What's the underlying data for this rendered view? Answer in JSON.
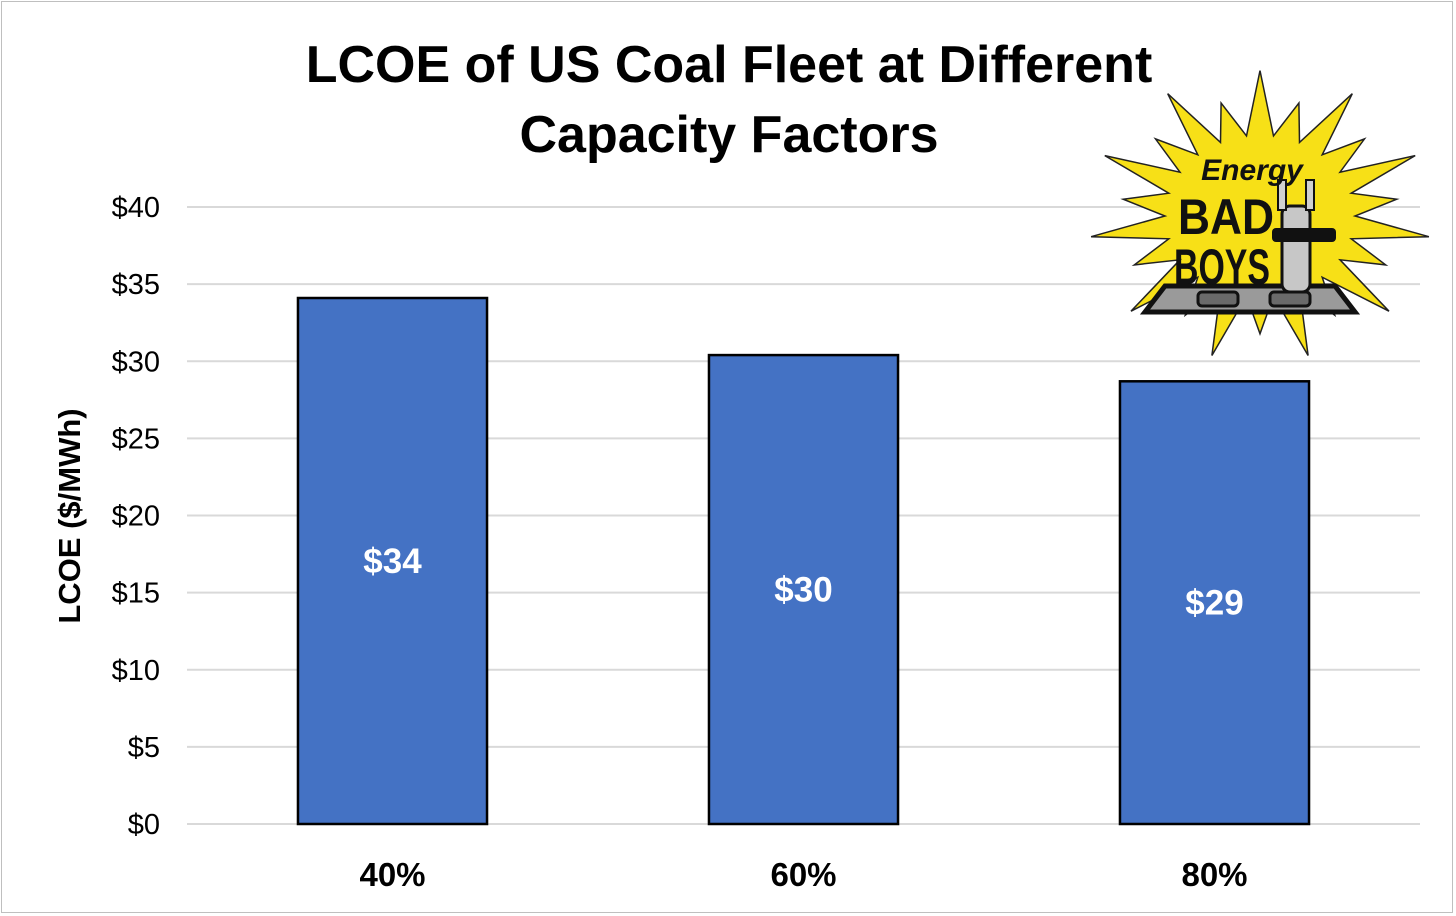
{
  "chart_data": {
    "type": "bar",
    "title_lines": [
      "LCOE of US Coal Fleet at Different",
      "Capacity Factors"
    ],
    "xlabel": "",
    "ylabel": "LCOE ($/MWh)",
    "categories": [
      "40%",
      "60%",
      "80%"
    ],
    "values": [
      34.1,
      30.4,
      28.7
    ],
    "data_labels": [
      "$34",
      "$30",
      "$29"
    ],
    "ylim": [
      0,
      40
    ],
    "yticks": [
      0,
      5,
      10,
      15,
      20,
      25,
      30,
      35,
      40
    ],
    "ytick_labels": [
      "$0",
      "$5",
      "$10",
      "$15",
      "$20",
      "$25",
      "$30",
      "$35",
      "$40"
    ],
    "grid": true,
    "legend": "none",
    "bar_color": "#4472c4",
    "bar_edge_color": "#000000",
    "grid_color": "#d9d9d9"
  },
  "logo": {
    "word_top": "Energy",
    "word_mid": "BAD",
    "word_bottom": "BOYS",
    "burst_color": "#f7e017"
  }
}
